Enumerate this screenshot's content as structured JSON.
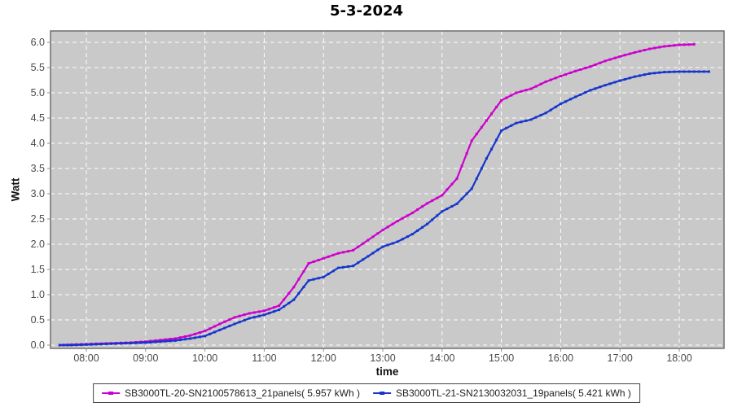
{
  "title": "5-3-2024",
  "colors": {
    "page_bg": "#ffffff",
    "plot_bg": "#c9c9c9",
    "grid": "#ffffff",
    "plot_border": "#6f6f6f",
    "tick": "#8f8f8f",
    "tick_label": "#4a4a4a",
    "series1": "#cc00cc",
    "series2": "#1535cc"
  },
  "axes": {
    "y_label": "Watt",
    "x_label": "time",
    "y_ticks": [
      "0.0",
      "0.5",
      "1.0",
      "1.5",
      "2.0",
      "2.5",
      "3.0",
      "3.5",
      "4.0",
      "4.5",
      "5.0",
      "5.5",
      "6.0"
    ],
    "x_ticks": [
      "08:00",
      "09:00",
      "10:00",
      "11:00",
      "12:00",
      "13:00",
      "14:00",
      "15:00",
      "16:00",
      "17:00",
      "18:00"
    ]
  },
  "chart_data": {
    "type": "line",
    "title": "5-3-2024",
    "xlabel": "time",
    "ylabel": "Watt",
    "x_unit": "hour of day (decimal)",
    "xlim": [
      7.4,
      18.77
    ],
    "ylim": [
      -0.06,
      6.23
    ],
    "grid": "white dashed gridlines on gray plot background",
    "legend_position": "bottom-center, boxed",
    "series": [
      {
        "name": "SB3000TL-20-SN2100578613_21panels( 5.957 kWh )",
        "color": "#cc00cc",
        "total_kwh": 5.957,
        "x": [
          7.55,
          7.75,
          8.0,
          8.25,
          8.5,
          8.75,
          9.0,
          9.25,
          9.5,
          9.75,
          10.0,
          10.25,
          10.5,
          10.75,
          11.0,
          11.25,
          11.5,
          11.75,
          12.0,
          12.25,
          12.5,
          12.75,
          13.0,
          13.25,
          13.5,
          13.75,
          14.0,
          14.25,
          14.5,
          14.75,
          15.0,
          15.25,
          15.5,
          15.75,
          16.0,
          16.25,
          16.5,
          16.75,
          17.0,
          17.25,
          17.5,
          17.75,
          18.0,
          18.25
        ],
        "values": [
          0.0,
          0.01,
          0.02,
          0.03,
          0.04,
          0.05,
          0.07,
          0.1,
          0.13,
          0.19,
          0.28,
          0.42,
          0.55,
          0.63,
          0.68,
          0.78,
          1.15,
          1.62,
          1.72,
          1.82,
          1.88,
          2.08,
          2.28,
          2.46,
          2.62,
          2.81,
          2.97,
          3.3,
          4.05,
          4.45,
          4.85,
          5.0,
          5.08,
          5.22,
          5.33,
          5.43,
          5.52,
          5.63,
          5.72,
          5.8,
          5.87,
          5.92,
          5.95,
          5.96
        ]
      },
      {
        "name": "SB3000TL-21-SN2130032031_19panels( 5.421 kWh )",
        "color": "#1535cc",
        "total_kwh": 5.421,
        "x": [
          7.55,
          7.75,
          8.0,
          8.25,
          8.5,
          8.75,
          9.0,
          9.25,
          9.5,
          9.75,
          10.0,
          10.25,
          10.5,
          10.75,
          11.0,
          11.25,
          11.5,
          11.75,
          12.0,
          12.25,
          12.5,
          12.75,
          13.0,
          13.25,
          13.5,
          13.75,
          14.0,
          14.25,
          14.5,
          14.75,
          15.0,
          15.25,
          15.5,
          15.75,
          16.0,
          16.25,
          16.5,
          16.75,
          17.0,
          17.25,
          17.5,
          17.75,
          18.0,
          18.25,
          18.5
        ],
        "values": [
          0.0,
          0.0,
          0.01,
          0.02,
          0.03,
          0.04,
          0.05,
          0.07,
          0.09,
          0.13,
          0.18,
          0.3,
          0.42,
          0.53,
          0.6,
          0.7,
          0.9,
          1.28,
          1.35,
          1.53,
          1.57,
          1.76,
          1.95,
          2.05,
          2.2,
          2.4,
          2.65,
          2.8,
          3.1,
          3.7,
          4.25,
          4.4,
          4.47,
          4.6,
          4.78,
          4.92,
          5.05,
          5.15,
          5.24,
          5.32,
          5.38,
          5.41,
          5.42,
          5.42,
          5.42
        ]
      }
    ]
  }
}
